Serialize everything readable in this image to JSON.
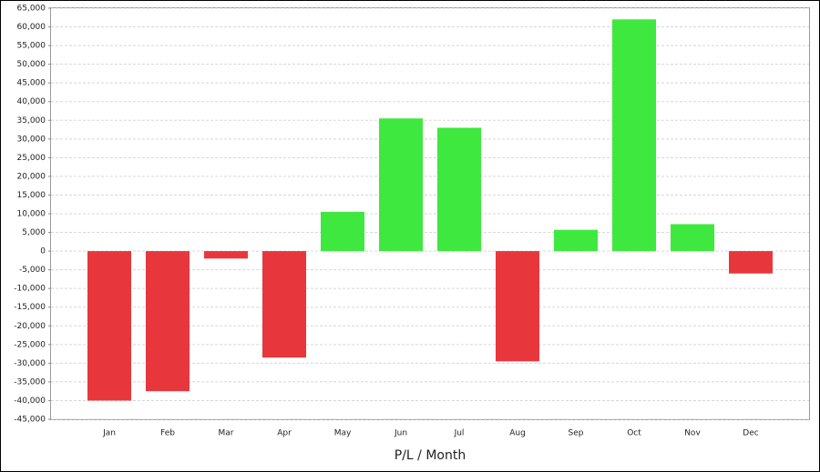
{
  "chart_data": {
    "type": "bar",
    "x_label": "P/L / Month",
    "categories": [
      "Jan",
      "Feb",
      "Mar",
      "Apr",
      "May",
      "Jun",
      "Jul",
      "Aug",
      "Sep",
      "Oct",
      "Nov",
      "Dec"
    ],
    "values": [
      -40000,
      -37500,
      -2000,
      -28500,
      10500,
      35500,
      33000,
      -29500,
      5700,
      62000,
      7200,
      -6000
    ],
    "positive_color": "#3fe83f",
    "negative_color": "#e8373c",
    "ylim": [
      -45000,
      65000
    ],
    "yticks": [
      {
        "value": -45000,
        "label": "-45,000"
      },
      {
        "value": -40000,
        "label": "-40,000"
      },
      {
        "value": -35000,
        "label": "-35,000"
      },
      {
        "value": -30000,
        "label": "-30,000"
      },
      {
        "value": -25000,
        "label": "-25,000"
      },
      {
        "value": -20000,
        "label": "-20,000"
      },
      {
        "value": -15000,
        "label": "-15,000"
      },
      {
        "value": -10000,
        "label": "-10,000"
      },
      {
        "value": -5000,
        "label": "-5,000"
      },
      0,
      {
        "value": 5000,
        "label": "5,000"
      },
      {
        "value": 10000,
        "label": "10,000"
      },
      {
        "value": 15000,
        "label": "15,000"
      },
      {
        "value": 20000,
        "label": "20,000"
      },
      {
        "value": 25000,
        "label": "25,000"
      },
      {
        "value": 30000,
        "label": "30,000"
      },
      {
        "value": 35000,
        "label": "35,000"
      },
      {
        "value": 40000,
        "label": "40,000"
      },
      {
        "value": 45000,
        "label": "45,000"
      },
      {
        "value": 50000,
        "label": "50,000"
      },
      {
        "value": 55000,
        "label": "55,000"
      },
      {
        "value": 60000,
        "label": "60,000"
      },
      {
        "value": 65000,
        "label": "65,000"
      }
    ],
    "grid": true
  }
}
